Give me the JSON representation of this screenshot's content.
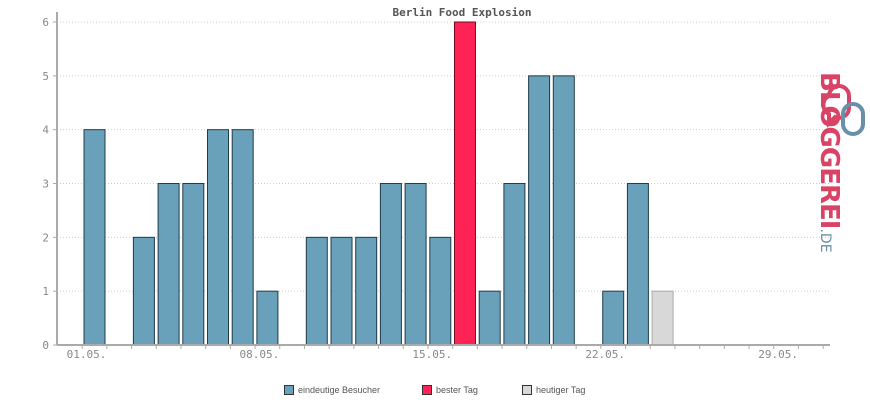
{
  "chart_data": {
    "type": "bar",
    "title": "Berlin Food Explosion",
    "x_tick_labels": [
      "01.05.",
      "08.05.",
      "15.05.",
      "22.05.",
      "29.05."
    ],
    "y_tick_labels": [
      "0",
      "1",
      "2",
      "3",
      "4",
      "5",
      "6"
    ],
    "ylim": [
      0,
      6
    ],
    "grid": true,
    "days": [
      "01.05.",
      "02.05.",
      "03.05.",
      "04.05.",
      "05.05.",
      "06.05.",
      "07.05.",
      "08.05.",
      "09.05.",
      "10.05.",
      "11.05.",
      "12.05.",
      "13.05.",
      "14.05.",
      "15.05.",
      "16.05.",
      "17.05.",
      "18.05.",
      "19.05.",
      "20.05.",
      "21.05.",
      "22.05.",
      "23.05.",
      "24.05.",
      "25.05.",
      "26.05.",
      "27.05.",
      "28.05.",
      "29.05.",
      "30.05.",
      "31.05."
    ],
    "values": [
      4,
      0,
      2,
      3,
      3,
      4,
      4,
      1,
      0,
      2,
      2,
      2,
      3,
      3,
      2,
      6,
      1,
      3,
      5,
      5,
      0,
      1,
      3,
      1,
      0,
      0,
      0,
      0,
      0,
      0,
      0
    ],
    "highlight": {
      "best_day": "16.05.",
      "today": "24.05."
    },
    "legend": [
      {
        "label": "eindeutige Besucher",
        "color": "#6aa1ba"
      },
      {
        "label": "bester Tag",
        "color": "#ff2255"
      },
      {
        "label": "heutiger Tag",
        "color": "#d8d8d8"
      }
    ],
    "legend_position": "bottom"
  },
  "colors": {
    "normal": "#6aa1ba",
    "best": "#ff2255",
    "today": "#d8d8d8",
    "bar_stroke": "#1f3d4a",
    "axis": "#aaaaaa",
    "grid": "#cccccc"
  },
  "logo": {
    "text": "BLOGGEREI",
    "suffix": ".DE"
  }
}
